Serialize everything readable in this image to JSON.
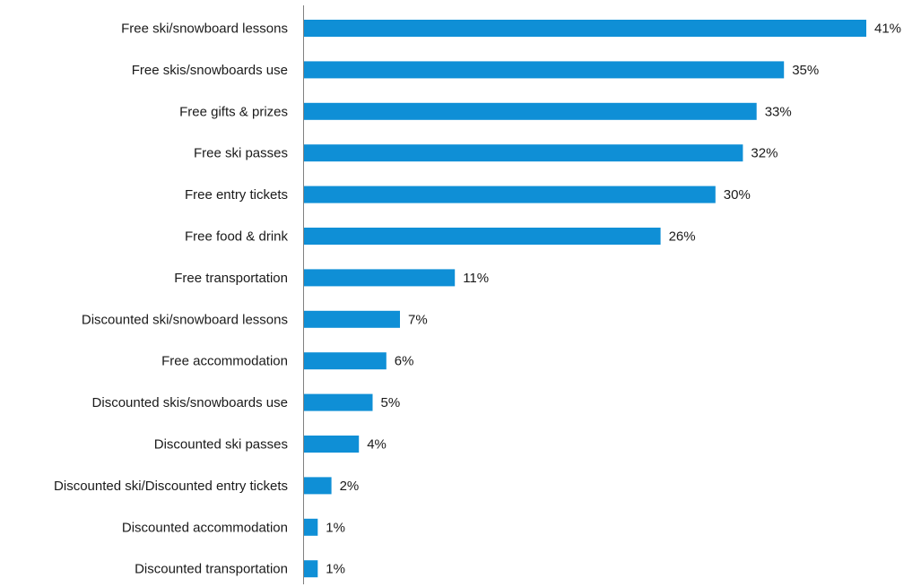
{
  "chart_data": {
    "type": "bar",
    "orientation": "horizontal",
    "categories": [
      "Free ski/snowboard lessons",
      "Free skis/snowboards use",
      "Free gifts & prizes",
      "Free ski passes",
      "Free entry tickets",
      "Free food & drink",
      "Free transportation",
      "Discounted ski/snowboard lessons",
      "Free accommodation",
      "Discounted skis/snowboards use",
      "Discounted ski passes",
      "Discounted ski/Discounted entry tickets",
      "Discounted accommodation",
      "Discounted transportation"
    ],
    "values": [
      41,
      35,
      33,
      32,
      30,
      26,
      11,
      7,
      6,
      5,
      4,
      2,
      1,
      1
    ],
    "value_labels": [
      "41%",
      "35%",
      "33%",
      "32%",
      "30%",
      "26%",
      "11%",
      "7%",
      "6%",
      "5%",
      "4%",
      "2%",
      "1%",
      "1%"
    ],
    "unit": "%",
    "xlim": [
      0,
      41
    ],
    "grid": false,
    "legend": "none",
    "bar_color": "#0f8fd6",
    "axis_color": "#808080"
  }
}
